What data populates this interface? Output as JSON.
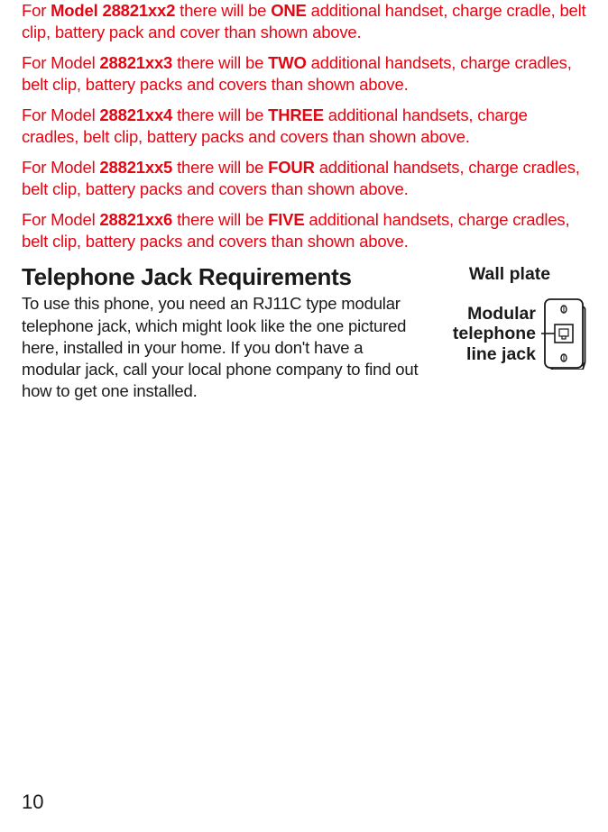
{
  "paragraphs": [
    {
      "runs": [
        {
          "t": "For ",
          "color": "red",
          "bold": false
        },
        {
          "t": "Model 28821xx2",
          "color": "red",
          "bold": true
        },
        {
          "t": " there will be ",
          "color": "red",
          "bold": false
        },
        {
          "t": "ONE",
          "color": "red",
          "bold": true
        },
        {
          "t": " additional handset, charge cradle, belt clip, battery pack and cover than shown above.",
          "color": "red",
          "bold": false
        }
      ]
    },
    {
      "runs": [
        {
          "t": "For Model ",
          "color": "red",
          "bold": false
        },
        {
          "t": "28821xx3",
          "color": "red",
          "bold": true
        },
        {
          "t": " there will be ",
          "color": "red",
          "bold": false
        },
        {
          "t": "TWO",
          "color": "red",
          "bold": true
        },
        {
          "t": " additional handsets, charge cradles, belt clip, battery packs and covers than shown above.",
          "color": "red",
          "bold": false
        }
      ]
    },
    {
      "runs": [
        {
          "t": "For Model ",
          "color": "red",
          "bold": false
        },
        {
          "t": "28821xx4",
          "color": "red",
          "bold": true
        },
        {
          "t": " there will be ",
          "color": "red",
          "bold": false
        },
        {
          "t": "THREE",
          "color": "red",
          "bold": true
        },
        {
          "t": " additional handsets, charge cradles, belt clip, battery packs and covers than shown above.",
          "color": "red",
          "bold": false
        }
      ]
    },
    {
      "runs": [
        {
          "t": "For Model ",
          "color": "red",
          "bold": false
        },
        {
          "t": "28821xx5",
          "color": "red",
          "bold": true
        },
        {
          "t": " there will be ",
          "color": "red",
          "bold": false
        },
        {
          "t": "FOUR",
          "color": "red",
          "bold": true
        },
        {
          "t": " additional handsets, charge cradles, belt clip, battery packs and covers than shown above.",
          "color": "red",
          "bold": false
        }
      ]
    },
    {
      "runs": [
        {
          "t": "For Model ",
          "color": "red",
          "bold": false
        },
        {
          "t": "28821xx6",
          "color": "red",
          "bold": true
        },
        {
          "t": " there will be ",
          "color": "red",
          "bold": false
        },
        {
          "t": "FIVE",
          "color": "red",
          "bold": true
        },
        {
          "t": " additional handsets, charge cradles, belt clip, battery packs and covers than shown above.",
          "color": "red",
          "bold": false
        }
      ]
    }
  ],
  "heading": "Telephone Jack Requirements",
  "jack_paragraph": "To use this phone, you need an RJ11C type modular telephone jack, which might look like the one pictured here, installed in your home. If you don't have a modular jack, call your local phone company to find out how to get one installed.",
  "wall_plate_label": "Wall plate",
  "modular_label_1": "Modular",
  "modular_label_2": "telephone",
  "modular_label_3": "line jack",
  "page_number": "10",
  "colors": {
    "red": "#e30613",
    "black": "#1a1a1a",
    "background": "#ffffff"
  }
}
